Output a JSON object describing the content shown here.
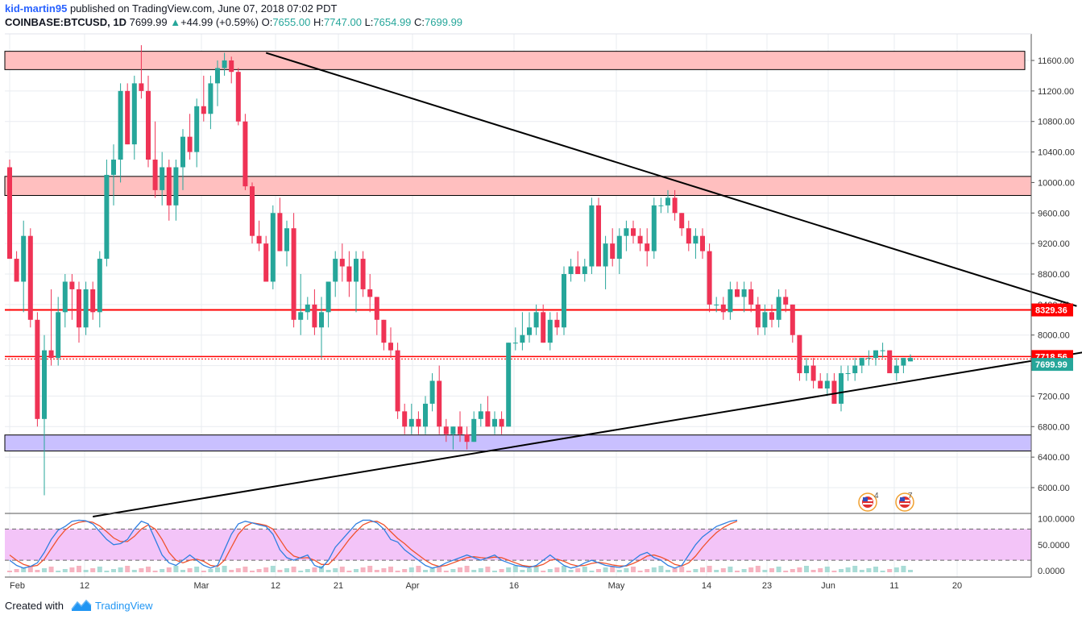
{
  "header": {
    "author": "kid-martin95",
    "published": "published on TradingView.com, June 07, 2018 07:02 PDT",
    "symbol": "COINBASE:BTCUSD, 1D",
    "last": "7699.99",
    "change": "+44.99 (+0.59%)",
    "o_label": "O:",
    "o": "7655.00",
    "h_label": "H:",
    "h": "7747.00",
    "l_label": "L:",
    "l": "7654.99",
    "c_label": "C:",
    "c": "7699.99"
  },
  "footer": {
    "created": "Created with",
    "brand": "TradingView"
  },
  "colors": {
    "up": "#26a69a",
    "down": "#ef3355",
    "zone_red": "#ffbfbf",
    "zone_purple": "#c9c0ff",
    "level": "#ff0000",
    "stoch_band": "#f3c4f8"
  },
  "chart_data": {
    "type": "candlestick",
    "ylim": [
      5650,
      11800
    ],
    "y_ticks": [
      "11600.00",
      "11200.00",
      "10800.00",
      "10400.00",
      "10000.00",
      "9600.00",
      "9200.00",
      "8800.00",
      "8400.00",
      "8000.00",
      "7600.00",
      "7200.00",
      "6800.00",
      "6400.00",
      "6000.00"
    ],
    "x_ticks": [
      "Feb",
      "12",
      "Mar",
      "12",
      "21",
      "Apr",
      "16",
      "May",
      "14",
      "23",
      "Jun",
      "11",
      "20"
    ],
    "price_labels": [
      "8329.36",
      "7718.56",
      "7699.99"
    ],
    "zones": [
      {
        "from": 11480,
        "to": 11720,
        "color": "red"
      },
      {
        "from": 9830,
        "to": 10080,
        "color": "red"
      },
      {
        "from": 6480,
        "to": 6690,
        "color": "purple"
      }
    ],
    "levels": [
      8329.36,
      7718.56
    ],
    "trendlines": [
      {
        "from": [
          37,
          11700
        ],
        "to": [
          154,
          8380
        ]
      },
      {
        "from": [
          12,
          5620
        ],
        "to": [
          162,
          7880
        ]
      }
    ],
    "candles": [
      [
        10200,
        10300,
        9000,
        9000
      ],
      [
        9000,
        9100,
        8700,
        8700
      ],
      [
        8700,
        9500,
        8300,
        9300
      ],
      [
        9300,
        9400,
        8100,
        8200
      ],
      [
        8200,
        8300,
        6800,
        6900
      ],
      [
        6900,
        8000,
        5900,
        7800
      ],
      [
        7800,
        8600,
        7600,
        7700
      ],
      [
        7700,
        8500,
        7600,
        8300
      ],
      [
        8300,
        8800,
        8100,
        8700
      ],
      [
        8700,
        8800,
        8200,
        8600
      ],
      [
        8600,
        8700,
        7900,
        8100
      ],
      [
        8100,
        8700,
        8000,
        8600
      ],
      [
        8600,
        8700,
        8200,
        8300
      ],
      [
        8300,
        9100,
        8100,
        9000
      ],
      [
        9000,
        10300,
        8900,
        10100
      ],
      [
        10100,
        10500,
        9700,
        10300
      ],
      [
        10300,
        11300,
        10000,
        11200
      ],
      [
        11200,
        11300,
        10500,
        10500
      ],
      [
        10500,
        11400,
        10300,
        11300
      ],
      [
        11300,
        11800,
        11100,
        11200
      ],
      [
        11200,
        11400,
        10200,
        10300
      ],
      [
        10300,
        10800,
        9800,
        9900
      ],
      [
        9900,
        10400,
        9700,
        10200
      ],
      [
        10200,
        10300,
        9500,
        9700
      ],
      [
        9700,
        10300,
        9500,
        10200
      ],
      [
        10200,
        10700,
        9900,
        10600
      ],
      [
        10600,
        10900,
        10300,
        10400
      ],
      [
        10400,
        11100,
        10200,
        11000
      ],
      [
        11000,
        11400,
        10800,
        10900
      ],
      [
        10900,
        11400,
        10700,
        11300
      ],
      [
        11300,
        11600,
        11000,
        11500
      ],
      [
        11500,
        11700,
        11400,
        11600
      ],
      [
        11600,
        11650,
        11300,
        11450
      ],
      [
        11450,
        11500,
        10750,
        10800
      ],
      [
        10800,
        10900,
        9900,
        9950
      ],
      [
        9950,
        10000,
        9200,
        9300
      ],
      [
        9300,
        9500,
        9100,
        9200
      ],
      [
        9200,
        9300,
        8700,
        8700
      ],
      [
        8700,
        9700,
        8600,
        9600
      ],
      [
        9600,
        9800,
        9100,
        9100
      ],
      [
        9100,
        9500,
        8900,
        9400
      ],
      [
        9400,
        9600,
        8100,
        8200
      ],
      [
        8200,
        8800,
        8000,
        8300
      ],
      [
        8300,
        8500,
        8200,
        8400
      ],
      [
        8400,
        8600,
        8000,
        8100
      ],
      [
        8100,
        8500,
        7700,
        8300
      ],
      [
        8300,
        8700,
        8100,
        8700
      ],
      [
        8700,
        9100,
        8500,
        9000
      ],
      [
        9000,
        9200,
        8700,
        8900
      ],
      [
        8900,
        9100,
        8500,
        8700
      ],
      [
        8700,
        9100,
        8300,
        9000
      ],
      [
        9000,
        9100,
        8500,
        8600
      ],
      [
        8600,
        8800,
        8300,
        8500
      ],
      [
        8500,
        8500,
        8000,
        8200
      ],
      [
        8200,
        8200,
        7800,
        7900
      ],
      [
        7900,
        8100,
        7700,
        7800
      ],
      [
        7800,
        7900,
        6900,
        7000
      ],
      [
        7000,
        7100,
        6700,
        6800
      ],
      [
        6800,
        7100,
        6700,
        6900
      ],
      [
        6900,
        7000,
        6700,
        6800
      ],
      [
        6800,
        7200,
        6700,
        7100
      ],
      [
        7100,
        7500,
        7000,
        7400
      ],
      [
        7400,
        7600,
        6700,
        6800
      ],
      [
        6800,
        6900,
        6600,
        6700
      ],
      [
        6700,
        6800,
        6500,
        6800
      ],
      [
        6800,
        7000,
        6600,
        6700
      ],
      [
        6700,
        6800,
        6500,
        6600
      ],
      [
        6600,
        7000,
        6600,
        6900
      ],
      [
        6900,
        7100,
        6800,
        7000
      ],
      [
        7000,
        7200,
        6800,
        6800
      ],
      [
        6800,
        7000,
        6700,
        6900
      ],
      [
        6900,
        7000,
        6700,
        6800
      ],
      [
        6800,
        7900,
        6800,
        7900
      ],
      [
        7900,
        8100,
        7800,
        7900
      ],
      [
        7900,
        8300,
        7800,
        8000
      ],
      [
        8000,
        8300,
        7900,
        8100
      ],
      [
        8100,
        8400,
        8000,
        8300
      ],
      [
        8300,
        8400,
        7900,
        7900
      ],
      [
        7900,
        8300,
        7800,
        8200
      ],
      [
        8200,
        8300,
        8000,
        8100
      ],
      [
        8100,
        8900,
        8000,
        8800
      ],
      [
        8800,
        9000,
        8700,
        8900
      ],
      [
        8900,
        9100,
        8800,
        8800
      ],
      [
        8800,
        9000,
        8700,
        8900
      ],
      [
        8900,
        9800,
        8800,
        9700
      ],
      [
        9700,
        9800,
        8900,
        8900
      ],
      [
        8900,
        9300,
        8600,
        9200
      ],
      [
        9200,
        9400,
        8900,
        9000
      ],
      [
        9000,
        9400,
        8800,
        9300
      ],
      [
        9300,
        9500,
        9100,
        9400
      ],
      [
        9400,
        9500,
        9200,
        9300
      ],
      [
        9300,
        9400,
        9100,
        9200
      ],
      [
        9200,
        9400,
        8900,
        9100
      ],
      [
        9100,
        9800,
        9000,
        9700
      ],
      [
        9700,
        9800,
        9600,
        9700
      ],
      [
        9700,
        9900,
        9600,
        9800
      ],
      [
        9800,
        9900,
        9500,
        9600
      ],
      [
        9600,
        9600,
        9300,
        9400
      ],
      [
        9400,
        9500,
        9100,
        9200
      ],
      [
        9200,
        9400,
        9000,
        9300
      ],
      [
        9300,
        9400,
        9000,
        9100
      ],
      [
        9100,
        9200,
        8300,
        8400
      ],
      [
        8400,
        8500,
        8300,
        8400
      ],
      [
        8400,
        8500,
        8200,
        8300
      ],
      [
        8300,
        8700,
        8200,
        8600
      ],
      [
        8600,
        8700,
        8500,
        8500
      ],
      [
        8500,
        8700,
        8300,
        8600
      ],
      [
        8600,
        8700,
        8300,
        8400
      ],
      [
        8400,
        8500,
        8000,
        8100
      ],
      [
        8100,
        8400,
        8000,
        8300
      ],
      [
        8300,
        8400,
        8100,
        8200
      ],
      [
        8200,
        8600,
        8100,
        8500
      ],
      [
        8500,
        8600,
        8300,
        8400
      ],
      [
        8400,
        8400,
        7900,
        8000
      ],
      [
        8000,
        8000,
        7400,
        7500
      ],
      [
        7500,
        7700,
        7400,
        7600
      ],
      [
        7600,
        7700,
        7300,
        7400
      ],
      [
        7400,
        7500,
        7300,
        7300
      ],
      [
        7300,
        7500,
        7200,
        7400
      ],
      [
        7400,
        7500,
        7100,
        7100
      ],
      [
        7100,
        7600,
        7000,
        7500
      ],
      [
        7500,
        7600,
        7400,
        7500
      ],
      [
        7500,
        7700,
        7400,
        7600
      ],
      [
        7600,
        7700,
        7500,
        7700
      ],
      [
        7700,
        7800,
        7600,
        7700
      ],
      [
        7700,
        7800,
        7600,
        7800
      ],
      [
        7800,
        7900,
        7700,
        7800
      ],
      [
        7800,
        7800,
        7500,
        7500
      ],
      [
        7500,
        7700,
        7400,
        7600
      ],
      [
        7600,
        7700,
        7500,
        7700
      ],
      [
        7655,
        7747,
        7654.99,
        7699.99
      ]
    ],
    "stoch_ticks": [
      "100.0000",
      "50.0000",
      "0.0000"
    ],
    "stoch_band": [
      20,
      80
    ],
    "stoch_k": [
      20,
      10,
      5,
      8,
      15,
      35,
      60,
      78,
      85,
      95,
      97,
      96,
      90,
      75,
      60,
      50,
      52,
      60,
      80,
      95,
      90,
      60,
      30,
      15,
      10,
      20,
      30,
      20,
      10,
      5,
      10,
      40,
      70,
      90,
      95,
      92,
      88,
      85,
      70,
      40,
      25,
      20,
      25,
      30,
      10,
      5,
      20,
      45,
      60,
      75,
      90,
      97,
      97,
      92,
      80,
      60,
      55,
      40,
      30,
      20,
      10,
      5,
      8,
      15,
      20,
      25,
      30,
      25,
      20,
      25,
      30,
      20,
      15,
      10,
      8,
      6,
      10,
      20,
      30,
      20,
      10,
      5,
      8,
      15,
      20,
      15,
      10,
      8,
      6,
      10,
      20,
      30,
      35,
      25,
      20,
      10,
      5,
      10,
      30,
      50,
      65,
      75,
      85,
      90,
      95,
      97
    ],
    "stoch_d": [
      30,
      20,
      12,
      8,
      10,
      22,
      42,
      62,
      78,
      88,
      93,
      95,
      93,
      86,
      75,
      63,
      56,
      56,
      66,
      80,
      88,
      80,
      60,
      35,
      20,
      15,
      20,
      22,
      18,
      10,
      8,
      20,
      45,
      70,
      85,
      92,
      90,
      87,
      80,
      60,
      40,
      28,
      24,
      25,
      20,
      12,
      12,
      25,
      42,
      60,
      75,
      88,
      94,
      95,
      88,
      75,
      62,
      52,
      40,
      30,
      20,
      12,
      8,
      10,
      15,
      20,
      25,
      27,
      25,
      24,
      26,
      25,
      20,
      15,
      10,
      8,
      8,
      12,
      20,
      22,
      18,
      12,
      9,
      10,
      14,
      16,
      14,
      11,
      9,
      9,
      14,
      20,
      28,
      30,
      26,
      20,
      12,
      9,
      15,
      28,
      45,
      60,
      73,
      83,
      90,
      95
    ]
  }
}
